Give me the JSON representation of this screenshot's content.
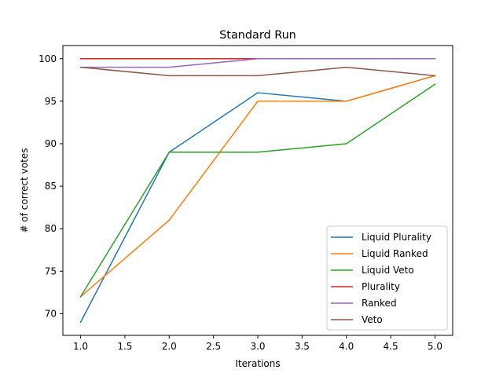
{
  "chart_data": {
    "type": "line",
    "title": "Standard Run",
    "xlabel": "Iterations",
    "ylabel": "# of correct votes",
    "xlim": [
      0.8,
      5.2
    ],
    "ylim": [
      67.45,
      101.55
    ],
    "xticks": [
      1.0,
      1.5,
      2.0,
      2.5,
      3.0,
      3.5,
      4.0,
      4.5,
      5.0
    ],
    "xtick_labels": [
      "1.0",
      "1.5",
      "2.0",
      "2.5",
      "3.0",
      "3.5",
      "4.0",
      "4.5",
      "5.0"
    ],
    "yticks": [
      70,
      75,
      80,
      85,
      90,
      95,
      100
    ],
    "ytick_labels": [
      "70",
      "75",
      "80",
      "85",
      "90",
      "95",
      "100"
    ],
    "grid": false,
    "legend_position": "lower-right",
    "x": [
      1,
      2,
      3,
      4,
      5
    ],
    "series": [
      {
        "name": "Liquid Plurality",
        "color": "#1f77b4",
        "values": [
          69,
          89,
          96,
          95,
          98
        ]
      },
      {
        "name": "Liquid Ranked",
        "color": "#ff7f0e",
        "values": [
          72,
          81,
          95,
          95,
          98
        ]
      },
      {
        "name": "Liquid Veto",
        "color": "#2ca02c",
        "values": [
          72,
          89,
          89,
          90,
          97
        ]
      },
      {
        "name": "Plurality",
        "color": "#d62728",
        "values": [
          100,
          100,
          100,
          100,
          100
        ]
      },
      {
        "name": "Ranked",
        "color": "#9467bd",
        "values": [
          99,
          99,
          100,
          100,
          100
        ]
      },
      {
        "name": "Veto",
        "color": "#8c564b",
        "values": [
          99,
          98,
          98,
          99,
          98
        ]
      }
    ]
  }
}
